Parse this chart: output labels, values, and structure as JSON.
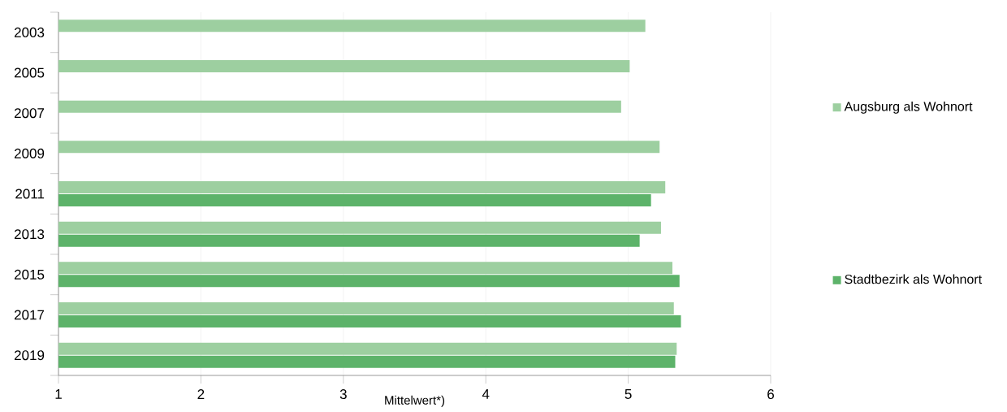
{
  "chart_data": {
    "type": "bar",
    "orientation": "horizontal",
    "xlabel": "Mittelwert*)",
    "categories": [
      "2003",
      "2005",
      "2007",
      "2009",
      "2011",
      "2013",
      "2015",
      "2017",
      "2019"
    ],
    "series": [
      {
        "name": "Augsburg als Wohnort",
        "color": "#9dcfa0",
        "values": [
          5.12,
          5.01,
          4.95,
          5.22,
          5.26,
          5.23,
          5.31,
          5.32,
          5.34
        ]
      },
      {
        "name": "Stadtbezirk als Wohnort",
        "color": "#5db36a",
        "values": [
          null,
          null,
          null,
          null,
          5.16,
          5.08,
          5.36,
          5.37,
          5.33
        ]
      }
    ],
    "xlim": [
      1,
      6
    ],
    "xticks": [
      1,
      2,
      3,
      4,
      5,
      6
    ],
    "grid": "x",
    "legend": "right"
  }
}
